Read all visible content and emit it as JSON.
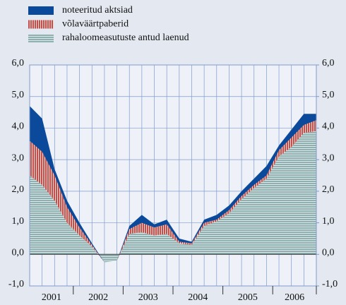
{
  "chart_data": {
    "type": "stacked_area",
    "years": [
      "2001",
      "2002",
      "2003",
      "2004",
      "2005",
      "2006"
    ],
    "series": [
      {
        "name": "rahaloomeasutuste antud laenud",
        "color": "#8aa8a8",
        "values": [
          2.5,
          2.2,
          1.7,
          1.0,
          0.6,
          0.25,
          -0.25,
          -0.2,
          0.65,
          0.7,
          0.6,
          0.65,
          0.35,
          0.3,
          0.9,
          1.05,
          1.3,
          1.75,
          2.1,
          2.4,
          3.1,
          3.4,
          3.85,
          3.9
        ]
      },
      {
        "name": "võlaväärtpaberid",
        "color": "#c0504d",
        "values": [
          1.1,
          1.05,
          0.8,
          0.5,
          0.25,
          0.05,
          0,
          0,
          0.15,
          0.3,
          0.25,
          0.3,
          0.05,
          0.05,
          0.1,
          0.05,
          0.1,
          0.1,
          0.1,
          0.1,
          0.2,
          0.3,
          0.25,
          0.35
        ]
      },
      {
        "name": "noteeritud aktsiad",
        "color": "#0b4a9a",
        "values": [
          1.1,
          1.05,
          0.2,
          0.2,
          0.15,
          0.05,
          0,
          0,
          0.1,
          0.25,
          0.1,
          0.15,
          0.1,
          0.05,
          0.1,
          0.15,
          0.15,
          0.15,
          0.2,
          0.3,
          0.15,
          0.25,
          0.35,
          0.2
        ]
      }
    ],
    "ylim": [
      -1,
      6
    ],
    "yticks": [
      {
        "value": -1,
        "label": "-1,0"
      },
      {
        "value": 0,
        "label": "0,0"
      },
      {
        "value": 1,
        "label": "1,0"
      },
      {
        "value": 2,
        "label": "2,0"
      },
      {
        "value": 3,
        "label": "3,0"
      },
      {
        "value": 4,
        "label": "4,0"
      },
      {
        "value": 5,
        "label": "5,0"
      },
      {
        "value": 6,
        "label": "6,0"
      }
    ],
    "y2lim": [
      -1,
      6
    ],
    "y2ticks": [
      {
        "value": -1,
        "label": "-1,0"
      },
      {
        "value": 0,
        "label": "0,0"
      },
      {
        "value": 1,
        "label": "1,0"
      },
      {
        "value": 2,
        "label": "2,0"
      },
      {
        "value": 3,
        "label": "3,0"
      },
      {
        "value": 4,
        "label": "4,0"
      },
      {
        "value": 5,
        "label": "5,0"
      },
      {
        "value": 6,
        "label": "6,0"
      }
    ],
    "grid": true
  }
}
